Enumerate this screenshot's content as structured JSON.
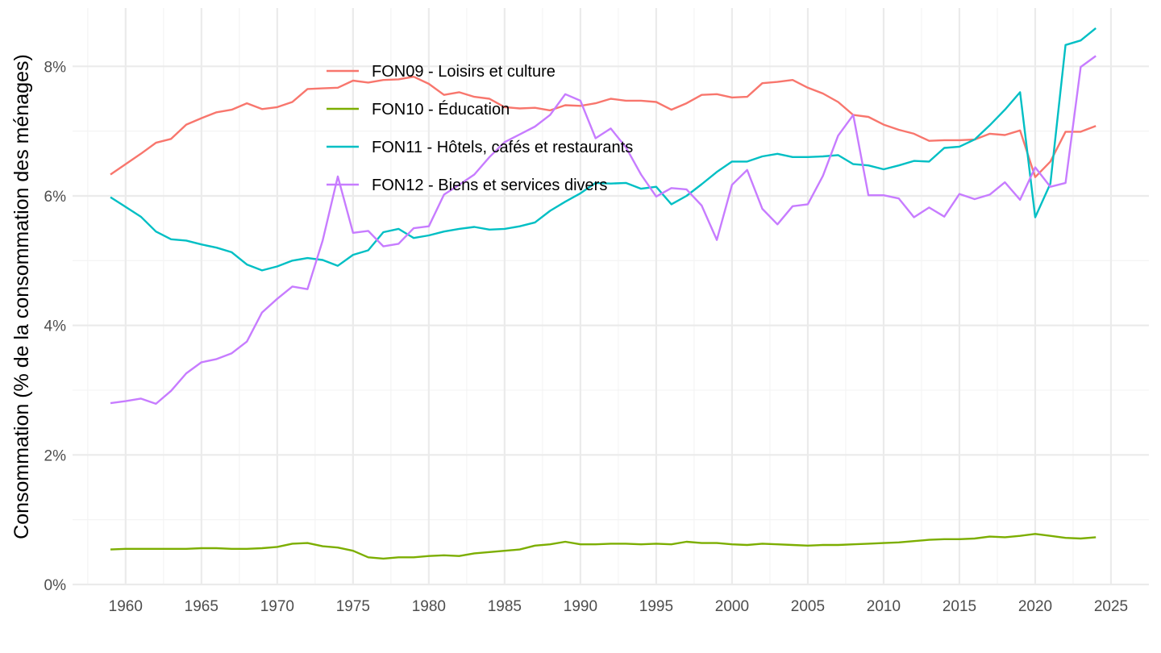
{
  "chart_data": {
    "type": "line",
    "title": "",
    "xlabel": "",
    "ylabel": "Consommation (% de la consommation des ménages)",
    "xlim": [
      1956.5,
      2027.5
    ],
    "ylim": [
      0,
      8.9
    ],
    "x_ticks": [
      1960,
      1965,
      1970,
      1975,
      1980,
      1985,
      1990,
      1995,
      2000,
      2005,
      2010,
      2015,
      2020,
      2025
    ],
    "x_tick_labels": [
      "1960",
      "1965",
      "1970",
      "1975",
      "1980",
      "1985",
      "1990",
      "1995",
      "2000",
      "2005",
      "2010",
      "2015",
      "2020",
      "2025"
    ],
    "y_ticks": [
      0,
      2,
      4,
      6,
      8
    ],
    "y_tick_labels": [
      "0%",
      "2%",
      "4%",
      "6%",
      "8%"
    ],
    "grid": true,
    "legend_position": "top-left inside",
    "x": [
      1959,
      1960,
      1961,
      1962,
      1963,
      1964,
      1965,
      1966,
      1967,
      1968,
      1969,
      1970,
      1971,
      1972,
      1973,
      1974,
      1975,
      1976,
      1977,
      1978,
      1979,
      1980,
      1981,
      1982,
      1983,
      1984,
      1985,
      1986,
      1987,
      1988,
      1989,
      1990,
      1991,
      1992,
      1993,
      1994,
      1995,
      1996,
      1997,
      1998,
      1999,
      2000,
      2001,
      2002,
      2003,
      2004,
      2005,
      2006,
      2007,
      2008,
      2009,
      2010,
      2011,
      2012,
      2013,
      2014,
      2015,
      2016,
      2017,
      2018,
      2019,
      2020,
      2021,
      2022,
      2023,
      2024
    ],
    "series": [
      {
        "name": "FON09 - Loisirs et culture",
        "color": "#F8766D",
        "values": [
          6.33,
          6.49,
          6.65,
          6.82,
          6.88,
          7.1,
          7.2,
          7.29,
          7.33,
          7.43,
          7.34,
          7.37,
          7.45,
          7.65,
          7.66,
          7.67,
          7.78,
          7.75,
          7.79,
          7.8,
          7.84,
          7.73,
          7.56,
          7.6,
          7.53,
          7.5,
          7.37,
          7.35,
          7.36,
          7.32,
          7.4,
          7.39,
          7.43,
          7.5,
          7.47,
          7.47,
          7.45,
          7.33,
          7.43,
          7.56,
          7.57,
          7.52,
          7.53,
          7.74,
          7.76,
          7.79,
          7.67,
          7.58,
          7.45,
          7.25,
          7.22,
          7.1,
          7.02,
          6.96,
          6.85,
          6.86,
          6.86,
          6.87,
          6.96,
          6.94,
          7.01,
          6.29,
          6.53,
          6.99,
          6.99,
          7.08
        ]
      },
      {
        "name": "FON10 - Éducation",
        "color": "#7CAE00",
        "values": [
          0.54,
          0.55,
          0.55,
          0.55,
          0.55,
          0.55,
          0.56,
          0.56,
          0.55,
          0.55,
          0.56,
          0.58,
          0.63,
          0.64,
          0.59,
          0.57,
          0.52,
          0.42,
          0.4,
          0.42,
          0.42,
          0.44,
          0.45,
          0.44,
          0.48,
          0.5,
          0.52,
          0.54,
          0.6,
          0.62,
          0.66,
          0.62,
          0.62,
          0.63,
          0.63,
          0.62,
          0.63,
          0.62,
          0.66,
          0.64,
          0.64,
          0.62,
          0.61,
          0.63,
          0.62,
          0.61,
          0.6,
          0.61,
          0.61,
          0.62,
          0.63,
          0.64,
          0.65,
          0.67,
          0.69,
          0.7,
          0.7,
          0.71,
          0.74,
          0.73,
          0.75,
          0.78,
          0.75,
          0.72,
          0.71,
          0.73
        ]
      },
      {
        "name": "FON11 - Hôtels, cafés et restaurants",
        "color": "#00BFC4",
        "values": [
          5.98,
          5.83,
          5.68,
          5.45,
          5.33,
          5.31,
          5.25,
          5.2,
          5.13,
          4.94,
          4.85,
          4.91,
          5.0,
          5.04,
          5.01,
          4.92,
          5.09,
          5.16,
          5.44,
          5.49,
          5.35,
          5.39,
          5.45,
          5.49,
          5.52,
          5.48,
          5.49,
          5.53,
          5.59,
          5.77,
          5.91,
          6.04,
          6.2,
          6.19,
          6.2,
          6.11,
          6.14,
          5.87,
          6.0,
          6.18,
          6.37,
          6.53,
          6.53,
          6.61,
          6.65,
          6.6,
          6.6,
          6.61,
          6.63,
          6.49,
          6.47,
          6.41,
          6.47,
          6.54,
          6.53,
          6.74,
          6.76,
          6.87,
          7.09,
          7.33,
          7.6,
          5.67,
          6.19,
          8.33,
          8.4,
          8.59
        ]
      },
      {
        "name": "FON12 - Biens et services divers",
        "color": "#C77CFF",
        "values": [
          2.8,
          2.83,
          2.87,
          2.79,
          2.99,
          3.26,
          3.43,
          3.48,
          3.57,
          3.75,
          4.2,
          4.41,
          4.6,
          4.56,
          5.31,
          6.3,
          5.43,
          5.46,
          5.22,
          5.26,
          5.5,
          5.53,
          6.02,
          6.17,
          6.33,
          6.6,
          6.83,
          6.95,
          7.07,
          7.25,
          7.57,
          7.47,
          6.89,
          7.04,
          6.75,
          6.33,
          5.99,
          6.12,
          6.1,
          5.85,
          5.32,
          6.17,
          6.4,
          5.8,
          5.56,
          5.84,
          5.87,
          6.31,
          6.93,
          7.25,
          6.01,
          6.01,
          5.96,
          5.67,
          5.82,
          5.68,
          6.03,
          5.95,
          6.02,
          6.21,
          5.94,
          6.44,
          6.14,
          6.2,
          7.99,
          8.16
        ]
      }
    ]
  }
}
